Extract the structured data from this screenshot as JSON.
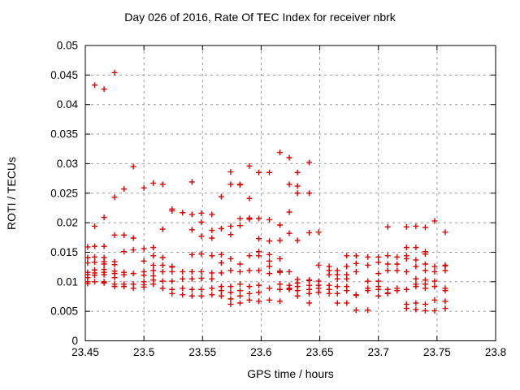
{
  "chart_data": {
    "type": "scatter",
    "title": "Day 026 of 2016, Rate Of TEC Index for receiver nbrk",
    "xlabel": "GPS time / hours",
    "ylabel": "ROTI / TECUs",
    "xlim": [
      23.45,
      23.8
    ],
    "ylim": [
      0,
      0.05
    ],
    "grid": true,
    "legend": "none",
    "marker": "plus",
    "colors": {
      "marker": "#dd0000",
      "grid": "#9a9a9a",
      "axis": "#000000",
      "text": "#000000"
    },
    "x_ticks": [
      {
        "v": 23.45,
        "label": "23.45"
      },
      {
        "v": 23.5,
        "label": "23.5"
      },
      {
        "v": 23.55,
        "label": "23.55"
      },
      {
        "v": 23.6,
        "label": "23.6"
      },
      {
        "v": 23.65,
        "label": "23.65"
      },
      {
        "v": 23.7,
        "label": "23.7"
      },
      {
        "v": 23.75,
        "label": "23.75"
      },
      {
        "v": 23.8,
        "label": "23.8"
      }
    ],
    "y_ticks": [
      {
        "v": 0,
        "label": "0"
      },
      {
        "v": 0.005,
        "label": "0.005"
      },
      {
        "v": 0.01,
        "label": "0.01"
      },
      {
        "v": 0.015,
        "label": "0.015"
      },
      {
        "v": 0.02,
        "label": "0.02"
      },
      {
        "v": 0.025,
        "label": "0.025"
      },
      {
        "v": 0.03,
        "label": "0.03"
      },
      {
        "v": 0.035,
        "label": "0.035"
      },
      {
        "v": 0.04,
        "label": "0.04"
      },
      {
        "v": 0.045,
        "label": "0.045"
      },
      {
        "v": 0.05,
        "label": "0.05"
      }
    ],
    "points": [
      [
        23.452,
        0.0159
      ],
      [
        23.452,
        0.0141
      ],
      [
        23.452,
        0.0132
      ],
      [
        23.452,
        0.0116
      ],
      [
        23.452,
        0.0112
      ],
      [
        23.452,
        0.0107
      ],
      [
        23.452,
        0.01
      ],
      [
        23.452,
        0.0097
      ],
      [
        23.458,
        0.0433
      ],
      [
        23.458,
        0.0194
      ],
      [
        23.458,
        0.016
      ],
      [
        23.458,
        0.0142
      ],
      [
        23.458,
        0.0133
      ],
      [
        23.458,
        0.012
      ],
      [
        23.458,
        0.0115
      ],
      [
        23.458,
        0.0111
      ],
      [
        23.458,
        0.01
      ],
      [
        23.466,
        0.0426
      ],
      [
        23.466,
        0.0209
      ],
      [
        23.466,
        0.016
      ],
      [
        23.466,
        0.0141
      ],
      [
        23.466,
        0.0134
      ],
      [
        23.466,
        0.013
      ],
      [
        23.466,
        0.0121
      ],
      [
        23.466,
        0.0116
      ],
      [
        23.466,
        0.0112
      ],
      [
        23.466,
        0.01
      ],
      [
        23.466,
        0.0098
      ],
      [
        23.475,
        0.0454
      ],
      [
        23.475,
        0.0243
      ],
      [
        23.475,
        0.0179
      ],
      [
        23.475,
        0.0134
      ],
      [
        23.475,
        0.0129
      ],
      [
        23.475,
        0.0118
      ],
      [
        23.475,
        0.0114
      ],
      [
        23.475,
        0.0107
      ],
      [
        23.475,
        0.0096
      ],
      [
        23.475,
        0.0092
      ],
      [
        23.483,
        0.0257
      ],
      [
        23.483,
        0.0179
      ],
      [
        23.483,
        0.0151
      ],
      [
        23.483,
        0.0116
      ],
      [
        23.483,
        0.0112
      ],
      [
        23.483,
        0.0096
      ],
      [
        23.483,
        0.0092
      ],
      [
        23.491,
        0.0295
      ],
      [
        23.491,
        0.0174
      ],
      [
        23.491,
        0.0154
      ],
      [
        23.491,
        0.0114
      ],
      [
        23.491,
        0.0096
      ],
      [
        23.491,
        0.0089
      ],
      [
        23.5,
        0.0259
      ],
      [
        23.5,
        0.0156
      ],
      [
        23.5,
        0.0135
      ],
      [
        23.5,
        0.0117
      ],
      [
        23.5,
        0.0111
      ],
      [
        23.5,
        0.01
      ],
      [
        23.5,
        0.0095
      ],
      [
        23.5,
        0.0091
      ],
      [
        23.508,
        0.0267
      ],
      [
        23.508,
        0.0158
      ],
      [
        23.508,
        0.0144
      ],
      [
        23.508,
        0.0128
      ],
      [
        23.508,
        0.0119
      ],
      [
        23.508,
        0.011
      ],
      [
        23.508,
        0.0103
      ],
      [
        23.508,
        0.0096
      ],
      [
        23.516,
        0.0265
      ],
      [
        23.516,
        0.0189
      ],
      [
        23.516,
        0.0141
      ],
      [
        23.516,
        0.0128
      ],
      [
        23.516,
        0.0117
      ],
      [
        23.516,
        0.0101
      ],
      [
        23.516,
        0.0089
      ],
      [
        23.524,
        0.0223
      ],
      [
        23.524,
        0.022
      ],
      [
        23.524,
        0.0126
      ],
      [
        23.524,
        0.0125
      ],
      [
        23.524,
        0.0117
      ],
      [
        23.524,
        0.0101
      ],
      [
        23.524,
        0.0087
      ],
      [
        23.524,
        0.008
      ],
      [
        23.533,
        0.0217
      ],
      [
        23.533,
        0.0117
      ],
      [
        23.533,
        0.0105
      ],
      [
        23.533,
        0.0089
      ],
      [
        23.533,
        0.0078
      ],
      [
        23.541,
        0.0269
      ],
      [
        23.541,
        0.0214
      ],
      [
        23.541,
        0.0188
      ],
      [
        23.541,
        0.0146
      ],
      [
        23.541,
        0.0117
      ],
      [
        23.541,
        0.0105
      ],
      [
        23.541,
        0.0087
      ],
      [
        23.541,
        0.0076
      ],
      [
        23.549,
        0.0216
      ],
      [
        23.549,
        0.0201
      ],
      [
        23.549,
        0.0177
      ],
      [
        23.549,
        0.0147
      ],
      [
        23.549,
        0.0117
      ],
      [
        23.549,
        0.0106
      ],
      [
        23.549,
        0.0087
      ],
      [
        23.549,
        0.0076
      ],
      [
        23.558,
        0.0214
      ],
      [
        23.558,
        0.0187
      ],
      [
        23.558,
        0.0174
      ],
      [
        23.558,
        0.0144
      ],
      [
        23.558,
        0.0115
      ],
      [
        23.558,
        0.0105
      ],
      [
        23.558,
        0.0089
      ],
      [
        23.558,
        0.0078
      ],
      [
        23.566,
        0.0244
      ],
      [
        23.566,
        0.019
      ],
      [
        23.566,
        0.0146
      ],
      [
        23.566,
        0.0132
      ],
      [
        23.566,
        0.0115
      ],
      [
        23.566,
        0.0092
      ],
      [
        23.566,
        0.0085
      ],
      [
        23.566,
        0.0076
      ],
      [
        23.574,
        0.0286
      ],
      [
        23.574,
        0.0265
      ],
      [
        23.574,
        0.0194
      ],
      [
        23.574,
        0.018
      ],
      [
        23.574,
        0.0139
      ],
      [
        23.574,
        0.0119
      ],
      [
        23.574,
        0.0092
      ],
      [
        23.574,
        0.0082
      ],
      [
        23.574,
        0.0071
      ],
      [
        23.574,
        0.0062
      ],
      [
        23.582,
        0.0265
      ],
      [
        23.582,
        0.0264
      ],
      [
        23.582,
        0.0207
      ],
      [
        23.582,
        0.0195
      ],
      [
        23.582,
        0.013
      ],
      [
        23.582,
        0.0117
      ],
      [
        23.582,
        0.0096
      ],
      [
        23.582,
        0.0085
      ],
      [
        23.582,
        0.0076
      ],
      [
        23.582,
        0.0064
      ],
      [
        23.59,
        0.0296
      ],
      [
        23.59,
        0.0241
      ],
      [
        23.59,
        0.0208
      ],
      [
        23.59,
        0.0206
      ],
      [
        23.59,
        0.0144
      ],
      [
        23.59,
        0.0119
      ],
      [
        23.59,
        0.0092
      ],
      [
        23.59,
        0.008
      ],
      [
        23.59,
        0.0069
      ],
      [
        23.598,
        0.0285
      ],
      [
        23.598,
        0.0207
      ],
      [
        23.598,
        0.0173
      ],
      [
        23.598,
        0.0151
      ],
      [
        23.598,
        0.0144
      ],
      [
        23.598,
        0.0119
      ],
      [
        23.598,
        0.0094
      ],
      [
        23.598,
        0.0082
      ],
      [
        23.598,
        0.0067
      ],
      [
        23.607,
        0.0285
      ],
      [
        23.607,
        0.0205
      ],
      [
        23.607,
        0.0169
      ],
      [
        23.607,
        0.0146
      ],
      [
        23.607,
        0.0135
      ],
      [
        23.607,
        0.0126
      ],
      [
        23.607,
        0.0114
      ],
      [
        23.607,
        0.0089
      ],
      [
        23.607,
        0.0069
      ],
      [
        23.616,
        0.0319
      ],
      [
        23.616,
        0.0196
      ],
      [
        23.616,
        0.017
      ],
      [
        23.616,
        0.0139
      ],
      [
        23.616,
        0.0118
      ],
      [
        23.616,
        0.0116
      ],
      [
        23.616,
        0.0096
      ],
      [
        23.616,
        0.0087
      ],
      [
        23.616,
        0.0067
      ],
      [
        23.624,
        0.031
      ],
      [
        23.624,
        0.0265
      ],
      [
        23.624,
        0.0218
      ],
      [
        23.624,
        0.0182
      ],
      [
        23.624,
        0.0117
      ],
      [
        23.624,
        0.0094
      ],
      [
        23.624,
        0.0089
      ],
      [
        23.624,
        0.0087
      ],
      [
        23.631,
        0.0285
      ],
      [
        23.631,
        0.0262
      ],
      [
        23.631,
        0.025
      ],
      [
        23.631,
        0.017
      ],
      [
        23.631,
        0.0104
      ],
      [
        23.631,
        0.0098
      ],
      [
        23.631,
        0.0092
      ],
      [
        23.631,
        0.0085
      ],
      [
        23.631,
        0.0076
      ],
      [
        23.641,
        0.0302
      ],
      [
        23.641,
        0.025
      ],
      [
        23.641,
        0.0183
      ],
      [
        23.641,
        0.0103
      ],
      [
        23.641,
        0.0102
      ],
      [
        23.641,
        0.0094
      ],
      [
        23.641,
        0.0087
      ],
      [
        23.641,
        0.008
      ],
      [
        23.641,
        0.0064
      ],
      [
        23.649,
        0.0184
      ],
      [
        23.649,
        0.0128
      ],
      [
        23.649,
        0.0101
      ],
      [
        23.649,
        0.0094
      ],
      [
        23.649,
        0.0089
      ],
      [
        23.649,
        0.0082
      ],
      [
        23.658,
        0.0126
      ],
      [
        23.658,
        0.0119
      ],
      [
        23.658,
        0.0112
      ],
      [
        23.658,
        0.0094
      ],
      [
        23.658,
        0.0087
      ],
      [
        23.658,
        0.008
      ],
      [
        23.665,
        0.0119
      ],
      [
        23.665,
        0.0112
      ],
      [
        23.665,
        0.0105
      ],
      [
        23.665,
        0.0092
      ],
      [
        23.665,
        0.008
      ],
      [
        23.665,
        0.0064
      ],
      [
        23.673,
        0.0144
      ],
      [
        23.673,
        0.0126
      ],
      [
        23.673,
        0.0112
      ],
      [
        23.673,
        0.0105
      ],
      [
        23.673,
        0.0092
      ],
      [
        23.673,
        0.0085
      ],
      [
        23.673,
        0.0064
      ],
      [
        23.681,
        0.0144
      ],
      [
        23.681,
        0.0131
      ],
      [
        23.681,
        0.0117
      ],
      [
        23.681,
        0.0078
      ],
      [
        23.681,
        0.0077
      ],
      [
        23.681,
        0.0052
      ],
      [
        23.691,
        0.0142
      ],
      [
        23.691,
        0.0128
      ],
      [
        23.691,
        0.0101
      ],
      [
        23.691,
        0.0089
      ],
      [
        23.691,
        0.0085
      ],
      [
        23.691,
        0.0052
      ],
      [
        23.7,
        0.0142
      ],
      [
        23.7,
        0.0133
      ],
      [
        23.7,
        0.0114
      ],
      [
        23.7,
        0.0101
      ],
      [
        23.7,
        0.0092
      ],
      [
        23.7,
        0.0087
      ],
      [
        23.7,
        0.0076
      ],
      [
        23.708,
        0.0193
      ],
      [
        23.708,
        0.0144
      ],
      [
        23.708,
        0.013
      ],
      [
        23.708,
        0.0119
      ],
      [
        23.708,
        0.0087
      ],
      [
        23.708,
        0.0081
      ],
      [
        23.708,
        0.008
      ],
      [
        23.716,
        0.0142
      ],
      [
        23.716,
        0.013
      ],
      [
        23.716,
        0.0119
      ],
      [
        23.716,
        0.0089
      ],
      [
        23.716,
        0.0085
      ],
      [
        23.724,
        0.0193
      ],
      [
        23.724,
        0.0158
      ],
      [
        23.724,
        0.0144
      ],
      [
        23.724,
        0.0139
      ],
      [
        23.724,
        0.0117
      ],
      [
        23.724,
        0.0087
      ],
      [
        23.724,
        0.0062
      ],
      [
        23.724,
        0.0055
      ],
      [
        23.732,
        0.0194
      ],
      [
        23.732,
        0.0158
      ],
      [
        23.732,
        0.0137
      ],
      [
        23.732,
        0.0126
      ],
      [
        23.732,
        0.0105
      ],
      [
        23.732,
        0.0096
      ],
      [
        23.732,
        0.0092
      ],
      [
        23.732,
        0.0064
      ],
      [
        23.732,
        0.0053
      ],
      [
        23.74,
        0.0192
      ],
      [
        23.74,
        0.0151
      ],
      [
        23.74,
        0.0147
      ],
      [
        23.74,
        0.013
      ],
      [
        23.74,
        0.0119
      ],
      [
        23.74,
        0.0103
      ],
      [
        23.74,
        0.0096
      ],
      [
        23.74,
        0.0089
      ],
      [
        23.74,
        0.0062
      ],
      [
        23.74,
        0.0051
      ],
      [
        23.748,
        0.0203
      ],
      [
        23.748,
        0.0126
      ],
      [
        23.748,
        0.0117
      ],
      [
        23.748,
        0.0101
      ],
      [
        23.748,
        0.0092
      ],
      [
        23.748,
        0.0069
      ],
      [
        23.748,
        0.0051
      ],
      [
        23.757,
        0.0184
      ],
      [
        23.757,
        0.0128
      ],
      [
        23.757,
        0.0127
      ],
      [
        23.757,
        0.0119
      ],
      [
        23.757,
        0.0089
      ],
      [
        23.757,
        0.0085
      ],
      [
        23.757,
        0.0067
      ],
      [
        23.757,
        0.0055
      ]
    ]
  }
}
